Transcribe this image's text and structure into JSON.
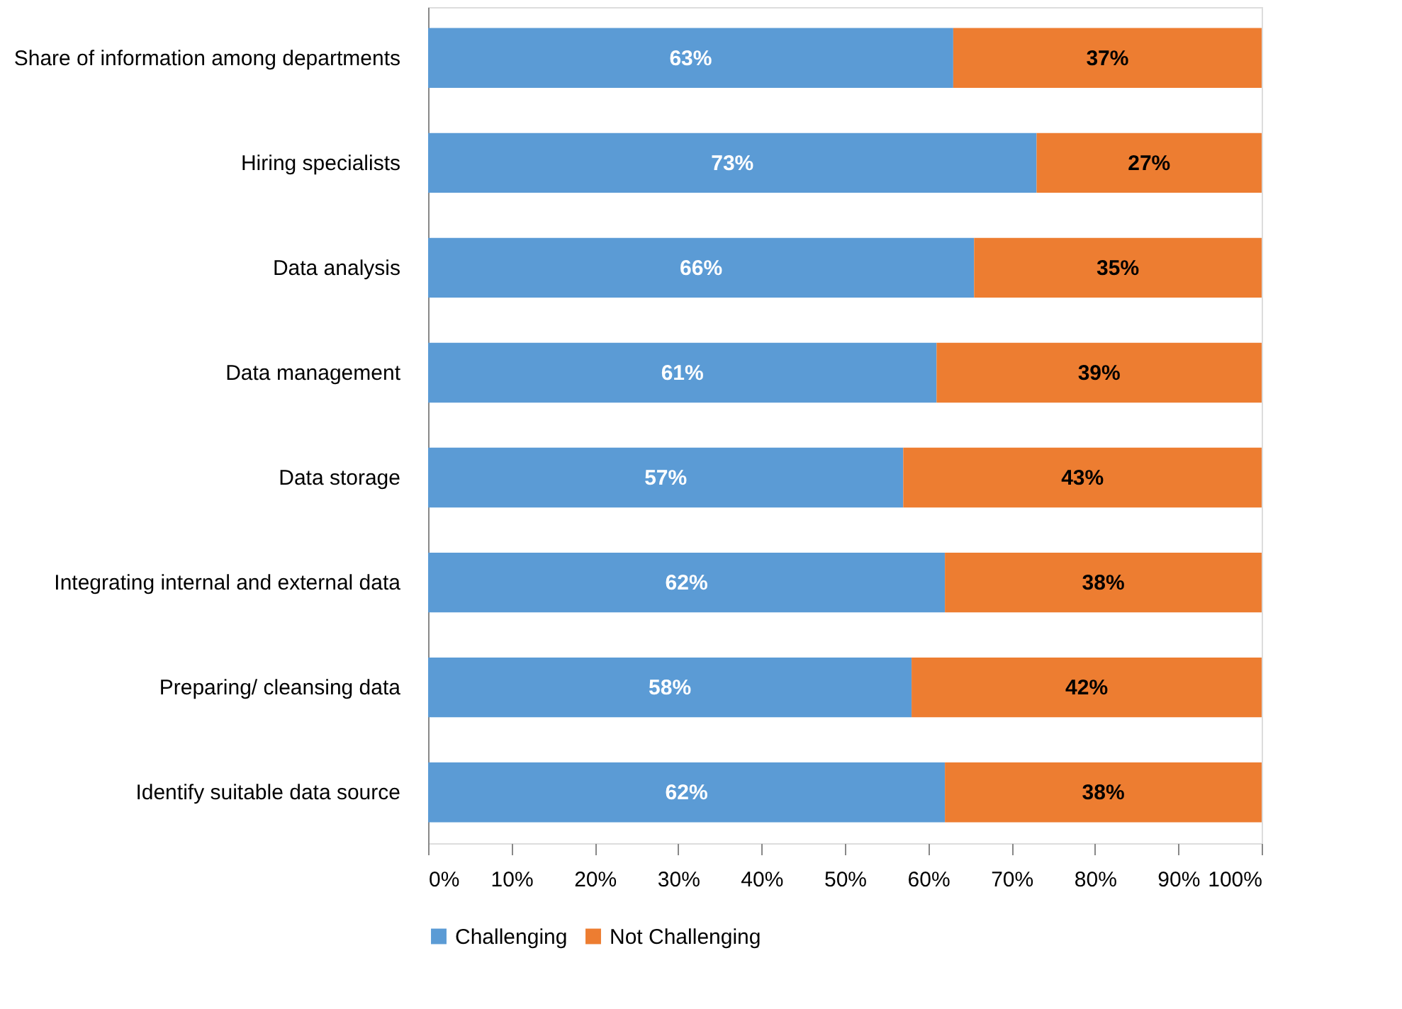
{
  "chart_data": {
    "type": "bar",
    "orientation": "horizontal",
    "stacked": true,
    "categories": [
      "Share of information among  departments",
      "Hiring specialists",
      "Data analysis",
      "Data management",
      "Data storage",
      "Integrating internal and external data",
      "Preparing/ cleansing data",
      "Identify suitable data source"
    ],
    "series": [
      {
        "name": "Challenging",
        "color": "#5b9bd5",
        "values": [
          63,
          73,
          65.5,
          61,
          57,
          62,
          58,
          62
        ],
        "value_labels": [
          "63%",
          "73%",
          "66%",
          "61%",
          "57%",
          "62%",
          "58%",
          "62%"
        ]
      },
      {
        "name": "Not Challenging",
        "color": "#ed7d31",
        "values": [
          37,
          27,
          34.5,
          39,
          43,
          38,
          42,
          38
        ],
        "value_labels": [
          "37%",
          "27%",
          "35%",
          "39%",
          "43%",
          "38%",
          "42%",
          "38%"
        ]
      }
    ],
    "xlim": [
      0,
      100
    ],
    "xticks": [
      {
        "value": 0,
        "label": "0%"
      },
      {
        "value": 10,
        "label": "10%"
      },
      {
        "value": 20,
        "label": "20%"
      },
      {
        "value": 30,
        "label": "30%"
      },
      {
        "value": 40,
        "label": "40%"
      },
      {
        "value": 50,
        "label": "50%"
      },
      {
        "value": 60,
        "label": "60%"
      },
      {
        "value": 70,
        "label": "70%"
      },
      {
        "value": 80,
        "label": "80%"
      },
      {
        "value": 90,
        "label": "90%"
      },
      {
        "value": 100,
        "label": "100%"
      }
    ],
    "grid": false,
    "legend": "bottom"
  }
}
